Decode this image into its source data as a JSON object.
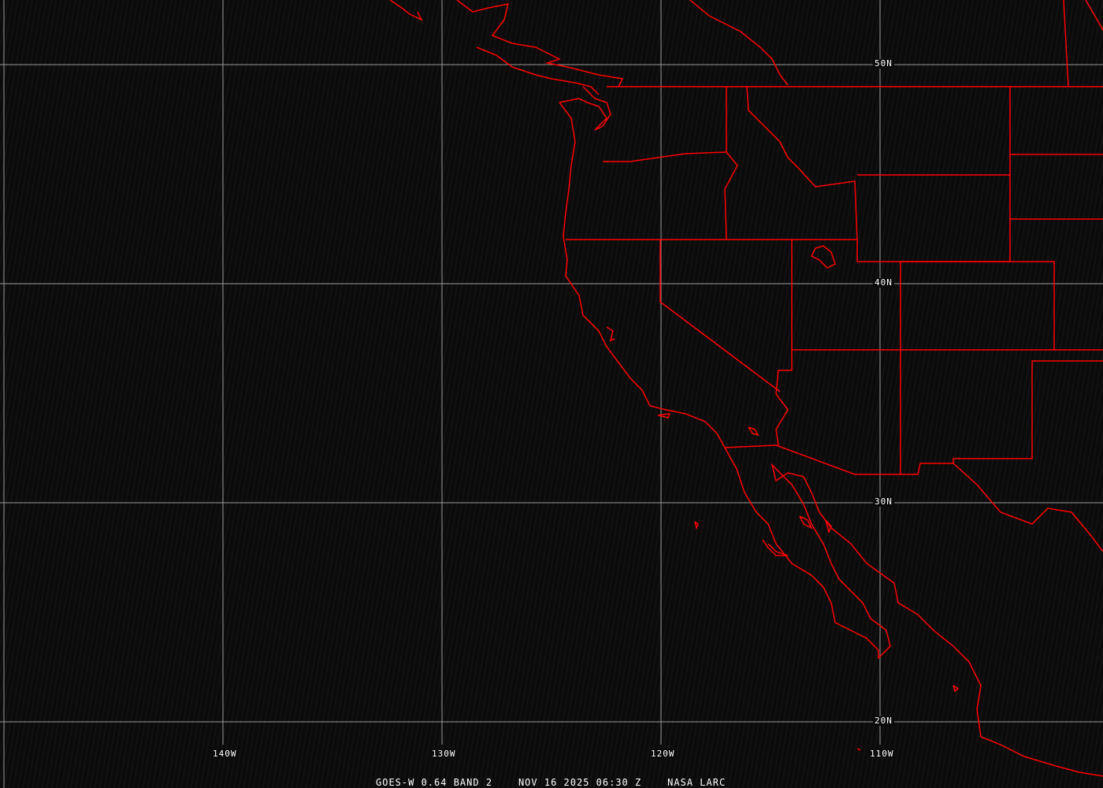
{
  "map": {
    "latitude_labels": [
      "50N",
      "40N",
      "30N",
      "20N"
    ],
    "longitude_labels": [
      "140W",
      "130W",
      "120W",
      "110W"
    ],
    "caption": {
      "satellite": "GOES-W 0.64 BAND 2",
      "datetime": "NOV 16 2025 06:30 Z",
      "source": "NASA LARC"
    },
    "colors": {
      "boundaries": "#ff0000",
      "grid": "#9a9a9a",
      "background": "#0b0b0b",
      "text": "#ffffff"
    }
  }
}
